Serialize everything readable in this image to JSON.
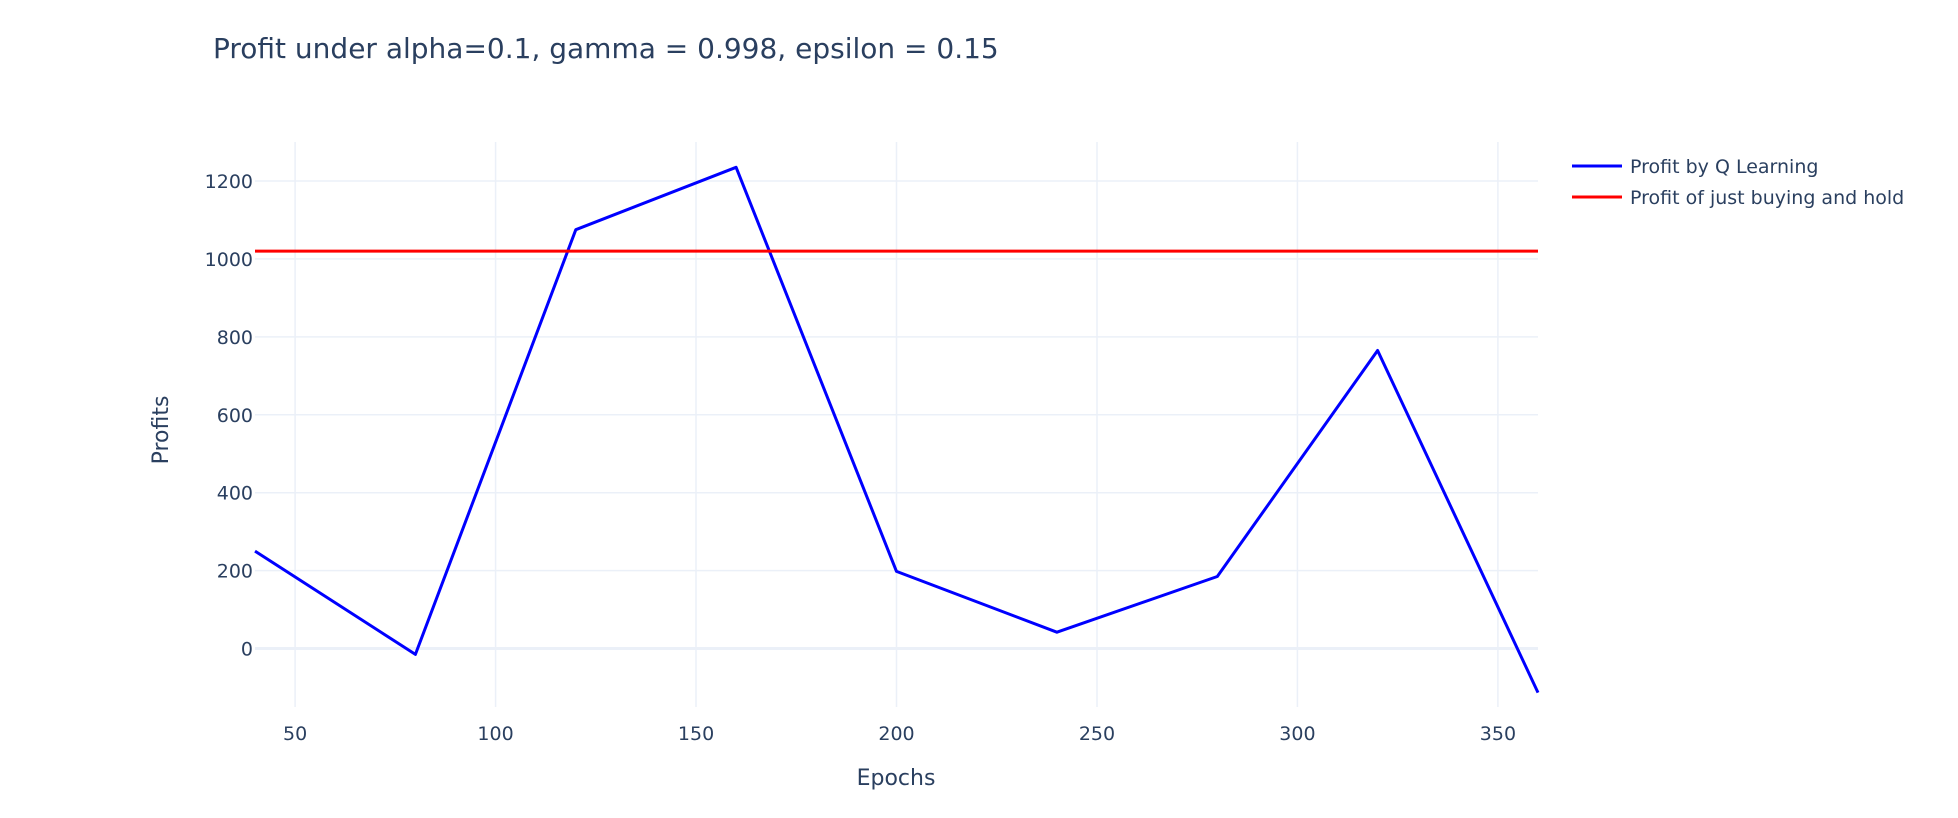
{
  "chart_data": {
    "type": "line",
    "title": "Profit under alpha=0.1, gamma = 0.998, epsilon = 0.15",
    "xlabel": "Epochs",
    "ylabel": "Profits",
    "xlim": [
      40,
      360
    ],
    "ylim": [
      -150,
      1300
    ],
    "xticks": [
      50,
      100,
      150,
      200,
      250,
      300,
      350
    ],
    "yticks": [
      0,
      200,
      400,
      600,
      800,
      1000,
      1200
    ],
    "grid": true,
    "legend_position": "top-right, outside plot",
    "series": [
      {
        "name": "Profit by Q Learning",
        "color": "#0000ff",
        "x": [
          40,
          80,
          120,
          160,
          200,
          240,
          280,
          320,
          360
        ],
        "y": [
          250,
          -15,
          1075,
          1235,
          198,
          42,
          185,
          765,
          -113
        ]
      },
      {
        "name": "Profit of just buying and hold",
        "color": "#ff0000",
        "x": [
          40,
          360
        ],
        "y": [
          1020,
          1020
        ]
      }
    ]
  }
}
